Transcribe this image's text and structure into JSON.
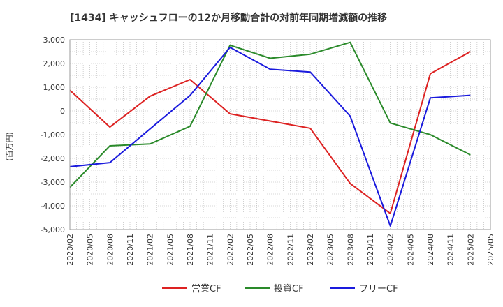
{
  "chart_data": {
    "type": "line",
    "title": "[1434]  キャッシュフローの12か月移動合計の対前年同期増減額の推移",
    "ylabel": "(百万円)",
    "xlabel": "",
    "ylim": [
      -5000,
      3000
    ],
    "yticks": [
      3000,
      2000,
      1000,
      0,
      -1000,
      -2000,
      -3000,
      -4000,
      -5000
    ],
    "ytick_labels": [
      "3,000",
      "2,000",
      "1,000",
      "0",
      "-1,000",
      "-2,000",
      "-3,000",
      "-4,000",
      "-5,000"
    ],
    "x_tick_labels": [
      "2020/02",
      "2020/05",
      "2020/08",
      "2020/11",
      "2021/02",
      "2021/05",
      "2021/08",
      "2021/11",
      "2022/02",
      "2022/05",
      "2022/08",
      "2022/11",
      "2023/02",
      "2023/05",
      "2023/08",
      "2023/11",
      "2024/02",
      "2024/05",
      "2024/08",
      "2024/11",
      "2025/02",
      "2025/05"
    ],
    "grid": true,
    "legend_position": "bottom",
    "series": [
      {
        "name": "営業CF",
        "color": "#dd2222",
        "x": [
          "2020/02",
          "2020/08",
          "2021/02",
          "2021/08",
          "2022/02",
          "2023/02",
          "2023/08",
          "2024/02",
          "2024/08",
          "2025/02"
        ],
        "values": [
          870,
          -680,
          620,
          1320,
          -120,
          -730,
          -3060,
          -4320,
          1570,
          2500
        ]
      },
      {
        "name": "投資CF",
        "color": "#2a8a2a",
        "x": [
          "2020/02",
          "2020/08",
          "2021/02",
          "2021/08",
          "2022/02",
          "2022/08",
          "2023/02",
          "2023/08",
          "2024/02",
          "2024/08",
          "2025/02"
        ],
        "values": [
          -3220,
          -1470,
          -1390,
          -650,
          2770,
          2220,
          2390,
          2890,
          -510,
          -1000,
          -1850
        ]
      },
      {
        "name": "フリーCF",
        "color": "#1a1add",
        "x": [
          "2020/02",
          "2020/08",
          "2021/02",
          "2021/08",
          "2022/02",
          "2022/08",
          "2023/02",
          "2023/08",
          "2024/02",
          "2024/08",
          "2025/02"
        ],
        "values": [
          -2350,
          -2180,
          -760,
          650,
          2680,
          1760,
          1640,
          -220,
          -4850,
          550,
          660
        ]
      }
    ]
  }
}
